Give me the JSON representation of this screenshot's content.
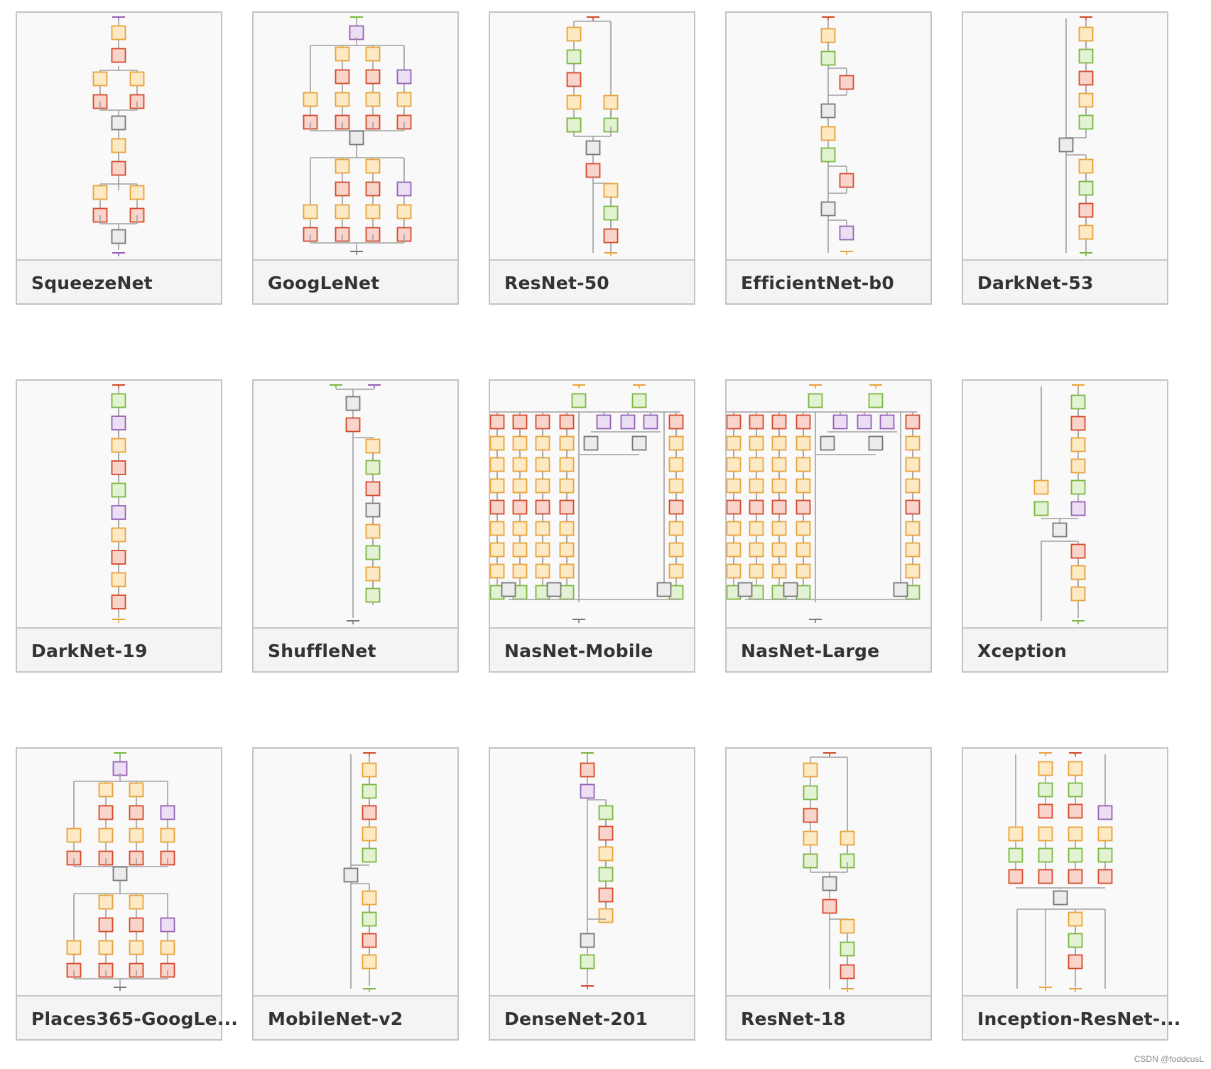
{
  "gallery": {
    "cards": [
      {
        "name": "SqueezeNet",
        "diagram": "squeeze"
      },
      {
        "name": "GoogLeNet",
        "diagram": "inception"
      },
      {
        "name": "ResNet-50",
        "diagram": "resnet"
      },
      {
        "name": "EfficientNet-b0",
        "diagram": "efficient"
      },
      {
        "name": "DarkNet-53",
        "diagram": "darknet53"
      },
      {
        "name": "DarkNet-19",
        "diagram": "darknet19"
      },
      {
        "name": "ShuffleNet",
        "diagram": "shuffle"
      },
      {
        "name": "NasNet-Mobile",
        "diagram": "nasnet"
      },
      {
        "name": "NasNet-Large",
        "diagram": "nasnet"
      },
      {
        "name": "Xception",
        "diagram": "xception"
      },
      {
        "name": "Places365-GoogLe...",
        "diagram": "inception"
      },
      {
        "name": "MobileNet-v2",
        "diagram": "mobilenet"
      },
      {
        "name": "DenseNet-201",
        "diagram": "densenet"
      },
      {
        "name": "ResNet-18",
        "diagram": "resnet"
      },
      {
        "name": "Inception-ResNet-...",
        "diagram": "incresnet"
      }
    ]
  },
  "colors": {
    "orange": {
      "stroke": "#e8a33a",
      "fill": "#fde9c4"
    },
    "red": {
      "stroke": "#d4492a",
      "fill": "#f9d4ca"
    },
    "green": {
      "stroke": "#7bb742",
      "fill": "#e3f2d3"
    },
    "purple": {
      "stroke": "#9561b4",
      "fill": "#ecdff4"
    },
    "gray": {
      "stroke": "#777777",
      "fill": "#ececec"
    },
    "line": "#a0a0a0"
  },
  "watermark": "CSDN @foddcusL"
}
